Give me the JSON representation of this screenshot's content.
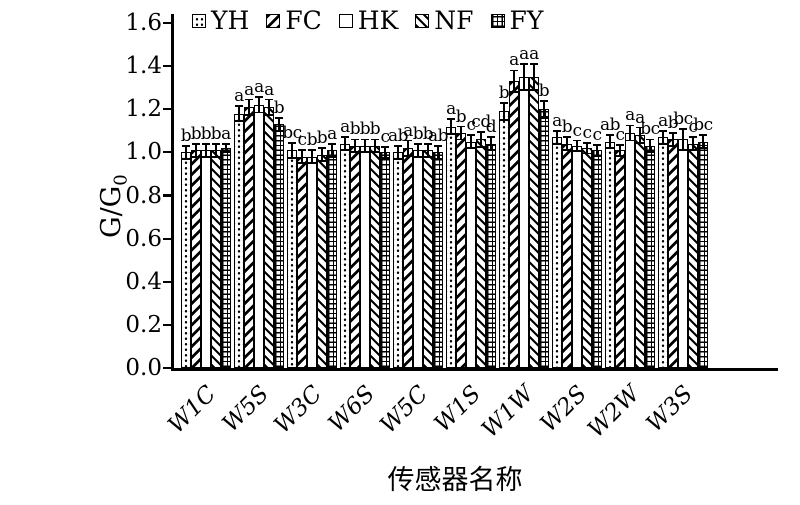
{
  "labels": {
    "y_main": "G/G",
    "y_sub": "0",
    "x_title": "传感器名称"
  },
  "chart_data": {
    "type": "bar",
    "title": "",
    "xlabel": "传感器名称",
    "ylabel": "G/G0",
    "ylim": [
      0.0,
      1.6
    ],
    "ytick_step": 0.2,
    "yticks": [
      "0.0",
      "0.2",
      "0.4",
      "0.6",
      "0.8",
      "1.0",
      "1.2",
      "1.4",
      "1.6"
    ],
    "grid": false,
    "legend_position": "top-inside-horizontal",
    "error_bars": true,
    "colors": {
      "bar_fill": "#ffffff",
      "bar_stroke": "#000000",
      "background": "#ffffff"
    },
    "categories": [
      "W1C",
      "W5S",
      "W3C",
      "W6S",
      "W5C",
      "W1S",
      "W1W",
      "W2S",
      "W2W",
      "W3S"
    ],
    "series": [
      {
        "name": "YH",
        "pattern": "dots",
        "values": [
          1.0,
          1.18,
          1.01,
          1.04,
          1.0,
          1.12,
          1.19,
          1.07,
          1.05,
          1.07
        ],
        "errors": [
          0.03,
          0.035,
          0.035,
          0.03,
          0.03,
          0.035,
          0.04,
          0.03,
          0.03,
          0.03
        ],
        "letters": [
          "b",
          "a",
          "bc",
          "a",
          "ab",
          "a",
          "b",
          "a",
          "ab",
          "a"
        ]
      },
      {
        "name": "FC",
        "pattern": "diagonal-forward",
        "values": [
          1.01,
          1.21,
          0.98,
          1.03,
          1.02,
          1.09,
          1.33,
          1.04,
          1.01,
          1.06
        ],
        "errors": [
          0.03,
          0.035,
          0.03,
          0.03,
          0.035,
          0.03,
          0.05,
          0.03,
          0.025,
          0.03
        ],
        "letters": [
          "b",
          "a",
          "c",
          "b",
          "a",
          "b",
          "a",
          "b",
          "c",
          "b"
        ]
      },
      {
        "name": "HK",
        "pattern": "plain",
        "values": [
          1.01,
          1.22,
          0.98,
          1.03,
          1.01,
          1.05,
          1.35,
          1.03,
          1.09,
          1.06
        ],
        "errors": [
          0.03,
          0.035,
          0.03,
          0.03,
          0.03,
          0.03,
          0.06,
          0.025,
          0.035,
          0.05
        ],
        "letters": [
          "b",
          "a",
          "b",
          "b",
          "b",
          "c",
          "a",
          "c",
          "a",
          "bc"
        ]
      },
      {
        "name": "NF",
        "pattern": "diagonal-back",
        "values": [
          1.01,
          1.21,
          0.99,
          1.03,
          1.01,
          1.06,
          1.35,
          1.02,
          1.08,
          1.04
        ],
        "errors": [
          0.03,
          0.035,
          0.03,
          0.03,
          0.03,
          0.035,
          0.06,
          0.025,
          0.035,
          0.03
        ],
        "letters": [
          "b",
          "a",
          "b",
          "b",
          "b",
          "cd",
          "a",
          "c",
          "a",
          "c"
        ]
      },
      {
        "name": "FY",
        "pattern": "grid",
        "values": [
          1.02,
          1.13,
          1.01,
          1.0,
          1.0,
          1.04,
          1.2,
          1.01,
          1.03,
          1.05
        ],
        "errors": [
          0.02,
          0.03,
          0.03,
          0.025,
          0.03,
          0.03,
          0.04,
          0.025,
          0.03,
          0.03
        ],
        "letters": [
          "a",
          "b",
          "a",
          "c",
          "ab",
          "d",
          "b",
          "c",
          "bc",
          "bc"
        ]
      }
    ]
  }
}
